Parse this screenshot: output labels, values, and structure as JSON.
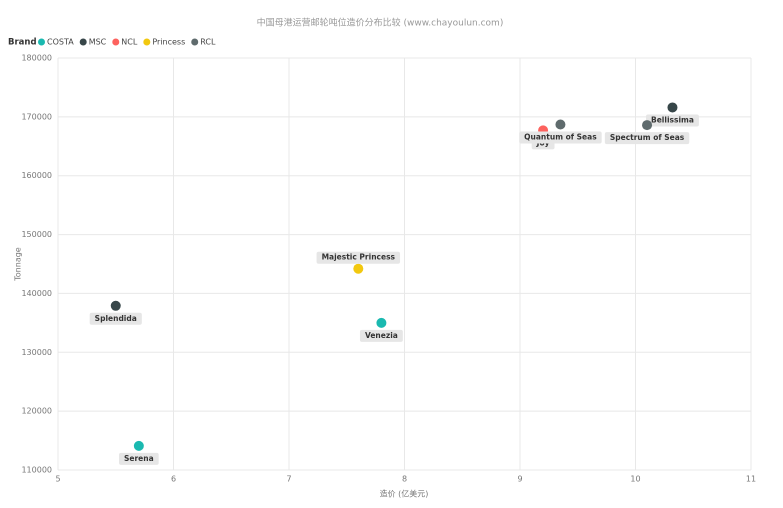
{
  "chart_data": {
    "type": "scatter",
    "title": "中国母港运营邮轮吨位造价分布比较 (www.chayoulun.com)",
    "legend_title": "Brand",
    "x_label": "造价 (亿美元)",
    "y_label": "Tonnage",
    "xlim": [
      5,
      11
    ],
    "xticks": [
      5,
      6,
      7,
      8,
      9,
      10,
      11
    ],
    "ylim": [
      110000,
      180000
    ],
    "yticks": [
      110000,
      120000,
      130000,
      140000,
      150000,
      160000,
      170000,
      180000
    ],
    "grid": true,
    "series": [
      {
        "name": "COSTA",
        "color": "#1ab9b0",
        "x": [
          5.7,
          7.8
        ],
        "values": [
          114100,
          135000
        ],
        "labels": [
          "Serena",
          "Venezia"
        ]
      },
      {
        "name": "MSC",
        "color": "#374649",
        "x": [
          5.5,
          10.32
        ],
        "values": [
          137900,
          171600
        ],
        "labels": [
          "Splendida",
          "Bellissima"
        ]
      },
      {
        "name": "NCL",
        "color": "#fd625e",
        "x": [
          9.2
        ],
        "values": [
          167700
        ],
        "labels": [
          "Joy"
        ]
      },
      {
        "name": "Princess",
        "color": "#f2c80f",
        "x": [
          7.6
        ],
        "values": [
          144200
        ],
        "labels": [
          "Majestic Princess"
        ]
      },
      {
        "name": "RCL",
        "color": "#5f6b6d",
        "x": [
          9.35,
          10.1
        ],
        "values": [
          168700,
          168600
        ],
        "labels": [
          "Quantum of Seas",
          "Spectrum of Seas"
        ]
      }
    ]
  }
}
